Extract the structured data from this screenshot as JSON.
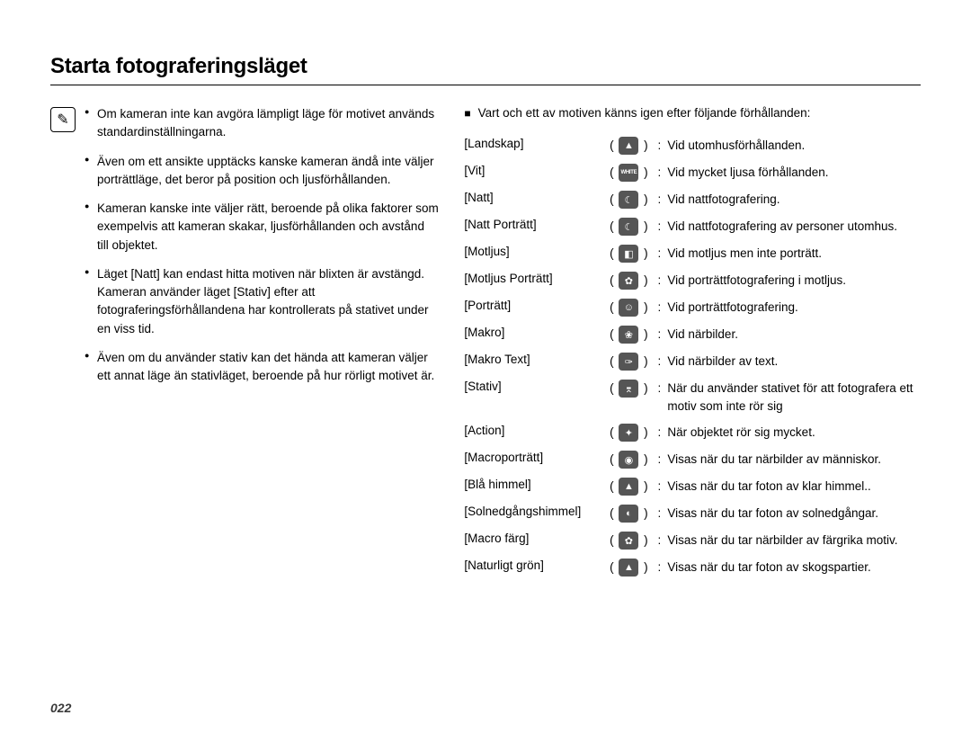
{
  "page_title": "Starta fotograferingsläget",
  "page_number": "022",
  "note_icon_glyph": "✎",
  "bullets": [
    "Om kameran inte kan avgöra lämpligt läge för motivet används standardinställningarna.",
    "Även om ett ansikte upptäcks kanske kameran ändå inte väljer porträttläge, det beror på position och ljusförhållanden.",
    "Kameran kanske inte väljer rätt, beroende på olika faktorer som exempelvis att kameran skakar, ljusförhållanden och avstånd till objektet.",
    "Läget [Natt] kan endast hitta motiven när blixten är avstängd. Kameran använder läget [Stativ] efter att fotograferingsförhållandena har kontrollerats på stativet under en viss tid.",
    "Även om du använder stativ kan det hända att kameran väljer ett annat läge än stativläget, beroende på hur rörligt motivet är."
  ],
  "right_intro": "Vart och ett av motiven känns igen efter följande förhållanden:",
  "modes": [
    {
      "label": "[Landskap]",
      "icon": "▲",
      "icon_class": "",
      "desc": "Vid utomhusförhållanden."
    },
    {
      "label": "[Vit]",
      "icon": "WHITE",
      "icon_class": "white-text",
      "desc": "Vid mycket ljusa förhållanden."
    },
    {
      "label": "[Natt]",
      "icon": "☾",
      "icon_class": "",
      "desc": "Vid nattfotografering."
    },
    {
      "label": "[Natt Porträtt]",
      "icon": "☾",
      "icon_class": "",
      "desc": "Vid nattfotografering av personer utomhus."
    },
    {
      "label": "[Motljus]",
      "icon": "◧",
      "icon_class": "",
      "desc": "Vid motljus men inte porträtt."
    },
    {
      "label": "[Motljus Porträtt]",
      "icon": "✿",
      "icon_class": "",
      "desc": "Vid porträttfotografering i motljus."
    },
    {
      "label": "[Porträtt]",
      "icon": "☺",
      "icon_class": "",
      "desc": "Vid porträttfotografering."
    },
    {
      "label": "[Makro]",
      "icon": "❀",
      "icon_class": "",
      "desc": "Vid närbilder."
    },
    {
      "label": "[Makro Text]",
      "icon": "✑",
      "icon_class": "",
      "desc": "Vid närbilder av text."
    },
    {
      "label": "[Stativ]",
      "icon": "⌆",
      "icon_class": "",
      "desc": "När du använder stativet för att fotografera ett motiv som inte rör sig"
    },
    {
      "label": "[Action]",
      "icon": "✦",
      "icon_class": "",
      "desc": "När objektet rör sig mycket."
    },
    {
      "label": "[Macroporträtt]",
      "icon": "◉",
      "icon_class": "",
      "desc": "Visas när du tar närbilder av människor."
    },
    {
      "label": "[Blå himmel]",
      "icon": "▲",
      "icon_class": "",
      "desc": "Visas när du tar foton av klar himmel.."
    },
    {
      "label": "[Solnedgångshimmel]",
      "icon": "◐",
      "icon_class": "",
      "desc": "Visas när du tar foton av solnedgångar."
    },
    {
      "label": "[Macro färg]",
      "icon": "✿",
      "icon_class": "",
      "desc": "Visas när du tar närbilder av färgrika motiv."
    },
    {
      "label": "[Naturligt grön]",
      "icon": "▲",
      "icon_class": "",
      "desc": "Visas när du tar foton av skogspartier."
    }
  ],
  "colors": {
    "chip_bg": "#555555",
    "chip_fg": "#ffffff",
    "text": "#000000",
    "page_bg": "#ffffff"
  }
}
